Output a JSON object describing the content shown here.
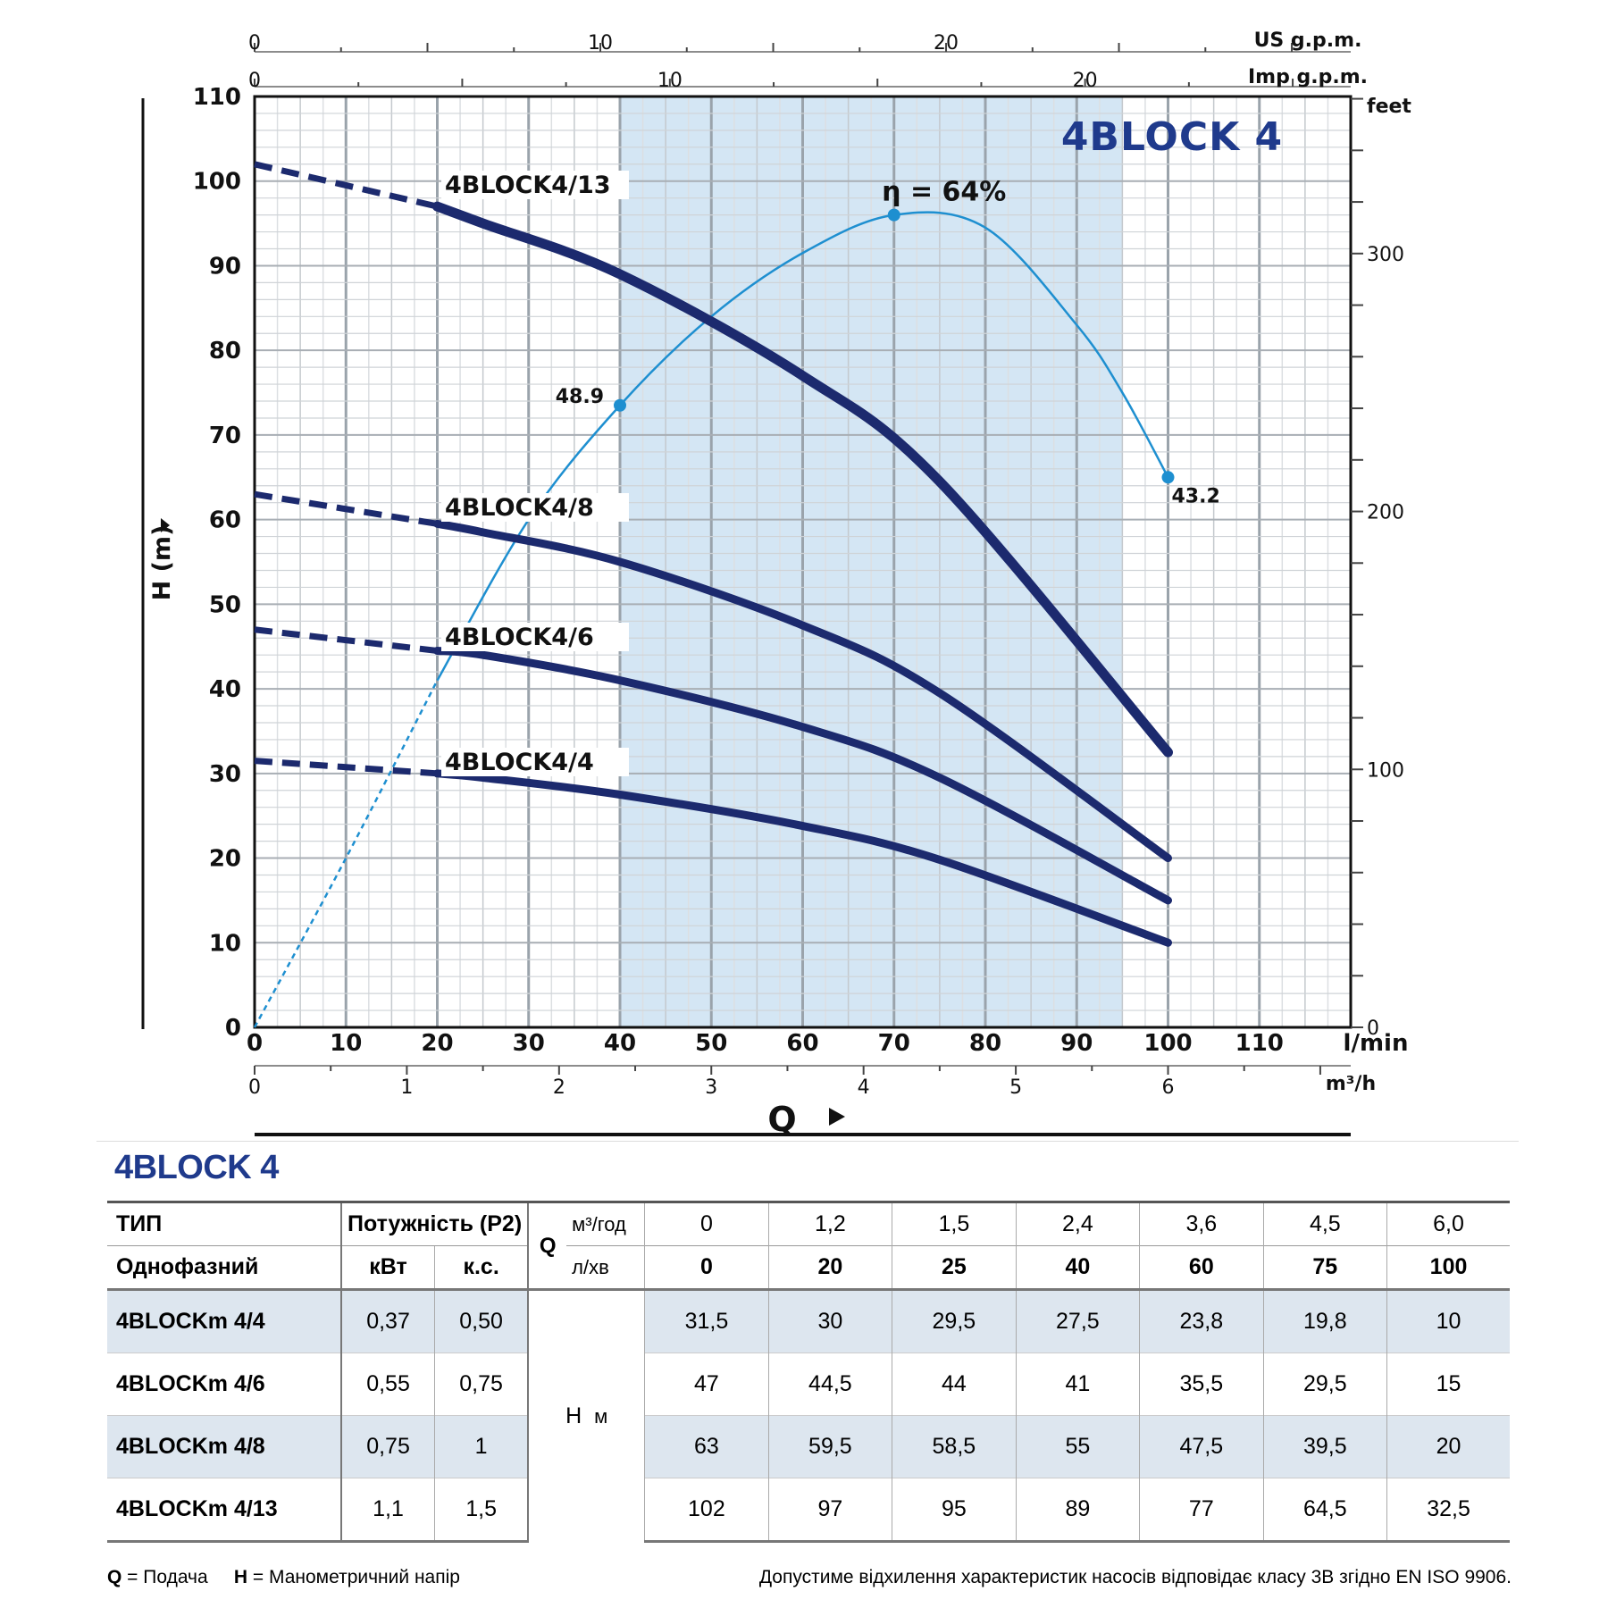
{
  "chart_data": {
    "type": "line",
    "title": "4BLOCK 4",
    "xlabel": "Q",
    "ylabel": "H (m)",
    "x_unit": "l/min",
    "xlim": [
      0,
      120
    ],
    "ylim": [
      0,
      110
    ],
    "x_ticks": [
      "0",
      "10",
      "20",
      "30",
      "40",
      "50",
      "60",
      "70",
      "80",
      "90",
      "100",
      "110"
    ],
    "y_ticks": [
      "0",
      "10",
      "20",
      "30",
      "40",
      "50",
      "60",
      "70",
      "80",
      "90",
      "100",
      "110"
    ],
    "secondary_axes": {
      "us_gpm": {
        "label": "US g.p.m.",
        "ticks": [
          "0",
          "10",
          "20"
        ],
        "values": [
          0,
          10,
          20
        ]
      },
      "imp_gpm": {
        "label": "Imp g.p.m.",
        "ticks": [
          "0",
          "10",
          "20"
        ],
        "values": [
          0,
          10,
          20
        ]
      },
      "m3h": {
        "label": "m³/h",
        "ticks": [
          "0",
          "1",
          "2",
          "3",
          "4",
          "5",
          "6"
        ],
        "values": [
          0,
          1,
          2,
          3,
          4,
          5,
          6
        ]
      },
      "feet": {
        "label": "feet",
        "ticks": [
          "0",
          "100",
          "200",
          "300"
        ],
        "values": [
          0,
          100,
          200,
          300
        ]
      }
    },
    "operating_range": [
      40,
      95
    ],
    "series": [
      {
        "name": "4BLOCK4/13",
        "x": [
          0,
          20,
          25,
          40,
          60,
          75,
          100
        ],
        "y": [
          102,
          97,
          95,
          89,
          77,
          64.5,
          32.5
        ]
      },
      {
        "name": "4BLOCK4/8",
        "x": [
          0,
          20,
          25,
          40,
          60,
          75,
          100
        ],
        "y": [
          63,
          59.5,
          58.5,
          55,
          47.5,
          39.5,
          20
        ]
      },
      {
        "name": "4BLOCK4/6",
        "x": [
          0,
          20,
          25,
          40,
          60,
          75,
          100
        ],
        "y": [
          47,
          44.5,
          44,
          41,
          35.5,
          29.5,
          15
        ]
      },
      {
        "name": "4BLOCK4/4",
        "x": [
          0,
          20,
          25,
          40,
          60,
          75,
          100
        ],
        "y": [
          31.5,
          30,
          29.5,
          27.5,
          23.8,
          19.8,
          10
        ]
      }
    ],
    "efficiency": {
      "label": "η = 64%",
      "points": [
        {
          "x": 40,
          "y": 73.5,
          "label": "48.9"
        },
        {
          "x": 70,
          "y": 96,
          "label": ""
        },
        {
          "x": 100,
          "y": 65,
          "label": "43.2"
        }
      ],
      "curve_x": [
        0,
        10,
        20,
        30,
        40,
        50,
        60,
        70,
        80,
        90,
        95,
        100
      ],
      "curve_y": [
        0,
        20,
        41,
        60,
        73.5,
        84,
        91.5,
        96,
        94.5,
        83,
        75,
        65
      ]
    },
    "colors": {
      "pump_curve": "#1c2a6e",
      "efficiency": "#1e8fd0",
      "range_fill": "#d4e6f4",
      "title": "#1f3a8c"
    }
  },
  "table": {
    "title": "4BLOCK 4",
    "type_label": "ТИП",
    "phase_label": "Однофазний",
    "power_label": "Потужність (P2)",
    "kw_label": "кВт",
    "hp_label": "к.с.",
    "q_label": "Q",
    "q_unit_m3": "м³/год",
    "q_unit_l": "л/хв",
    "m3h_values": [
      "0",
      "1,2",
      "1,5",
      "2,4",
      "3,6",
      "4,5",
      "6,0"
    ],
    "lmin_values": [
      "0",
      "20",
      "25",
      "40",
      "60",
      "75",
      "100"
    ],
    "h_label": "H",
    "h_unit": "м",
    "rows": [
      {
        "model": "4BLOCKm 4/4",
        "kw": "0,37",
        "hp": "0,50",
        "h": [
          "31,5",
          "30",
          "29,5",
          "27,5",
          "23,8",
          "19,8",
          "10"
        ]
      },
      {
        "model": "4BLOCKm 4/6",
        "kw": "0,55",
        "hp": "0,75",
        "h": [
          "47",
          "44,5",
          "44",
          "41",
          "35,5",
          "29,5",
          "15"
        ]
      },
      {
        "model": "4BLOCKm 4/8",
        "kw": "0,75",
        "hp": "1",
        "h": [
          "63",
          "59,5",
          "58,5",
          "55",
          "47,5",
          "39,5",
          "20"
        ]
      },
      {
        "model": "4BLOCKm 4/13",
        "kw": "1,1",
        "hp": "1,5",
        "h": [
          "102",
          "97",
          "95",
          "89",
          "77",
          "64,5",
          "32,5"
        ]
      }
    ]
  },
  "footer": {
    "q_key": "Q",
    "q_text": " = Подача",
    "h_key": "H",
    "h_text": " = Манометричний напір",
    "note": "Допустиме відхилення характеристик насосів відповідає класу 3B згідно EN ISO 9906."
  }
}
